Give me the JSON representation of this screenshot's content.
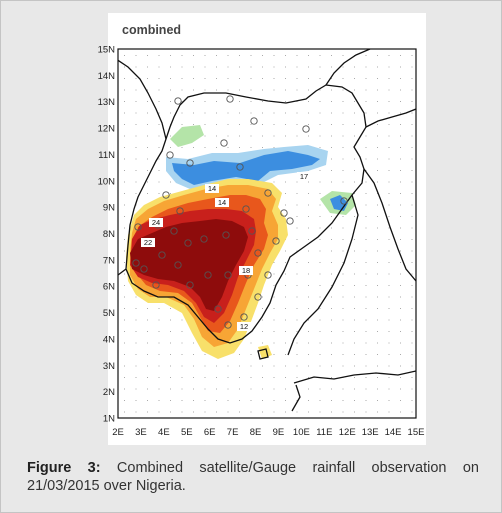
{
  "map": {
    "title": "combined",
    "lat_labels": [
      "15N",
      "14N",
      "13N",
      "12N",
      "11N",
      "10N",
      "9N",
      "8N",
      "7N",
      "6N",
      "5N",
      "4N",
      "3N",
      "2N",
      "1N"
    ],
    "lon_labels": [
      "2E",
      "3E",
      "4E",
      "5E",
      "6E",
      "7E",
      "8E",
      "9E",
      "10E",
      "11E",
      "12E",
      "13E",
      "14E",
      "15E"
    ],
    "lon_range": [
      2,
      15
    ],
    "lat_range": [
      1,
      15
    ],
    "station_values": [
      "17",
      "14",
      "14",
      "24",
      "22",
      "18",
      "12"
    ],
    "colors": {
      "light_green": "#b4e4a8",
      "light_blue": "#a8d4f0",
      "blue": "#3c8ee0",
      "yellow": "#f8e06a",
      "orange": "#f7a535",
      "dark_orange": "#e8571c",
      "red": "#c8201c",
      "dark_red": "#8e0c0c"
    }
  },
  "caption": {
    "label": "Figure 3:",
    "text": " Combined satellite/Gauge rainfall observation on 21/03/2015 over Nigeria."
  }
}
